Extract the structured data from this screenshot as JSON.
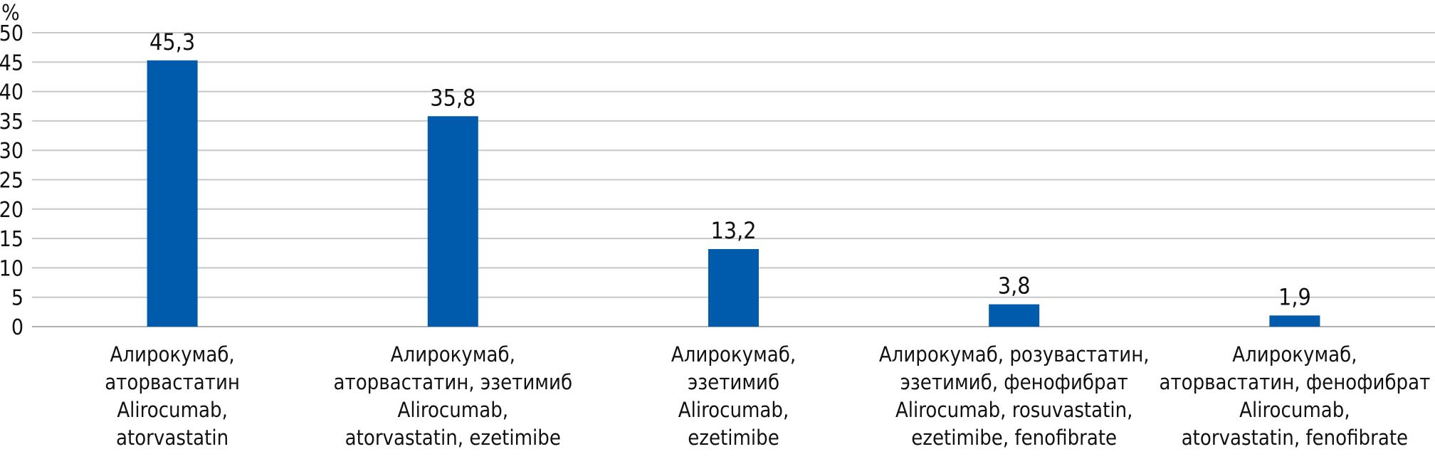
{
  "chart_data": {
    "type": "bar",
    "ylabel": "%",
    "ylim": [
      0,
      50
    ],
    "yticks": [
      0,
      5,
      10,
      15,
      20,
      25,
      30,
      35,
      40,
      45,
      50
    ],
    "grid": true,
    "bar_color": "#005bac",
    "grid_color": "#c8c8c8",
    "categories": [
      [
        "Алирокумаб,",
        "аторвастатин",
        "Alirocumab,",
        "atorvastatin"
      ],
      [
        "Алирокумаб,",
        "аторвастатин, эзетимиб",
        "Alirocumab,",
        "atorvastatin, ezetimibe"
      ],
      [
        "Алирокумаб,",
        "эзетимиб",
        "Alirocumab,",
        "ezetimibe"
      ],
      [
        "Алирокумаб, розувастатин,",
        "эзетимиб, фенофибрат",
        "Alirocumab, rosuvastatin,",
        "ezetimibe, fenofibrate"
      ],
      [
        "Алирокумаб,",
        "аторвастатин, фенофибрат",
        "Alirocumab,",
        "atorvastatin, fenofibrate"
      ]
    ],
    "values": [
      45.3,
      35.8,
      13.2,
      3.8,
      1.9
    ],
    "value_labels": [
      "45,3",
      "35,8",
      "13,2",
      "3,8",
      "1,9"
    ]
  }
}
